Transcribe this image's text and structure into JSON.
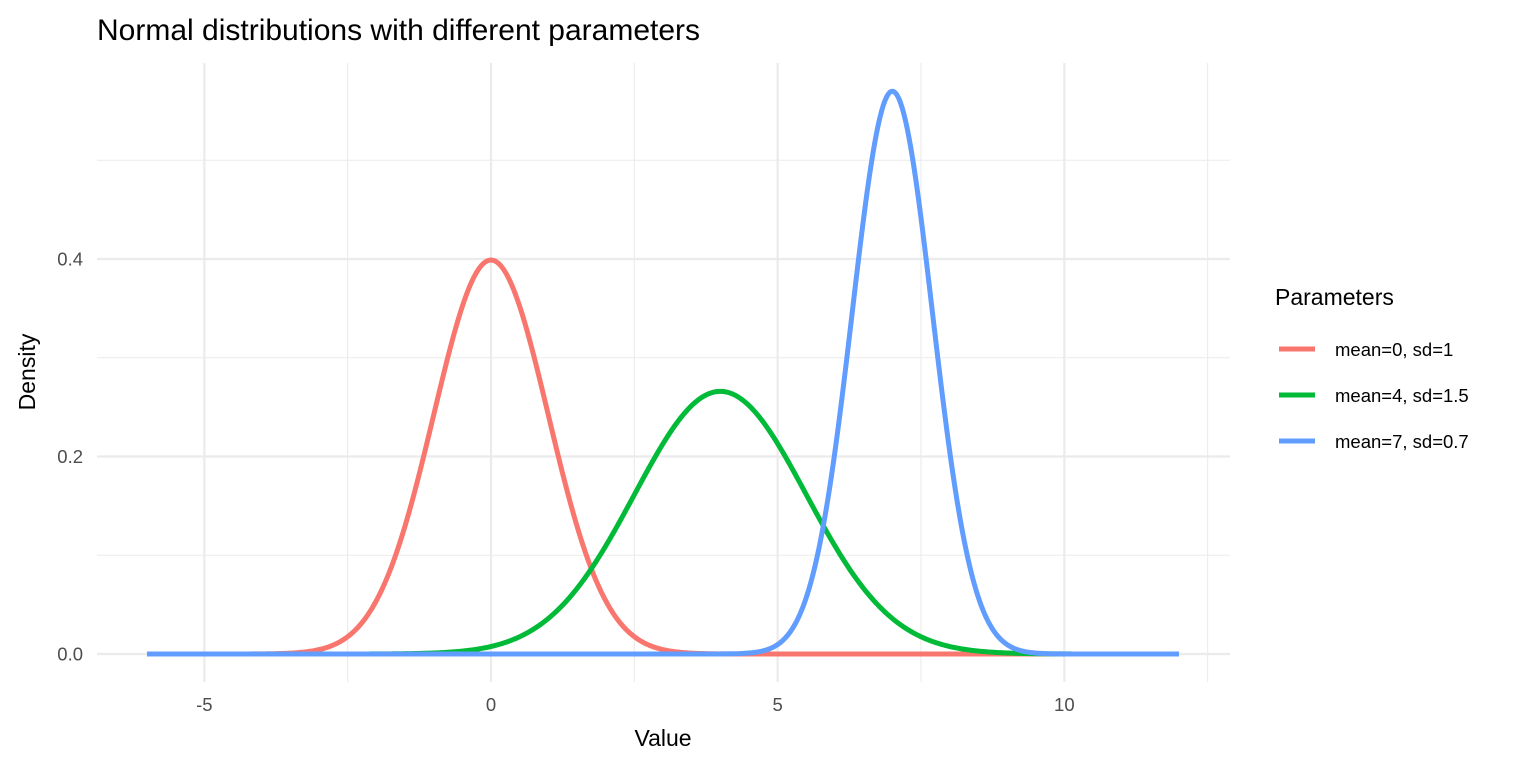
{
  "chart_data": {
    "type": "line",
    "title": "Normal distributions with different parameters",
    "xlabel": "Value",
    "ylabel": "Density",
    "xlim": [
      -6,
      12
    ],
    "ylim": [
      0,
      0.57
    ],
    "x_ticks": [
      -5,
      0,
      5,
      10
    ],
    "x_tick_labels": [
      "-5",
      "0",
      "5",
      "10"
    ],
    "x_minor_ticks": [
      -2.5,
      2.5,
      7.5,
      12.5
    ],
    "y_ticks": [
      0.0,
      0.2,
      0.4
    ],
    "y_tick_labels": [
      "0.0",
      "0.2",
      "0.4"
    ],
    "y_minor_ticks": [
      0.1,
      0.3,
      0.5
    ],
    "grid": true,
    "legend": {
      "title": "Parameters",
      "position": "right",
      "entries": [
        {
          "label": "mean=0, sd=1",
          "color": "#F8766D"
        },
        {
          "label": "mean=4, sd=1.5",
          "color": "#00BA38"
        },
        {
          "label": "mean=7, sd=0.7",
          "color": "#619CFF"
        }
      ]
    },
    "series": [
      {
        "name": "mean=0, sd=1",
        "mean": 0,
        "sd": 1,
        "color": "#F8766D",
        "peak_density": 0.399
      },
      {
        "name": "mean=4, sd=1.5",
        "mean": 4,
        "sd": 1.5,
        "color": "#00BA38",
        "peak_density": 0.266
      },
      {
        "name": "mean=7, sd=0.7",
        "mean": 7,
        "sd": 0.7,
        "color": "#619CFF",
        "peak_density": 0.57
      }
    ]
  }
}
